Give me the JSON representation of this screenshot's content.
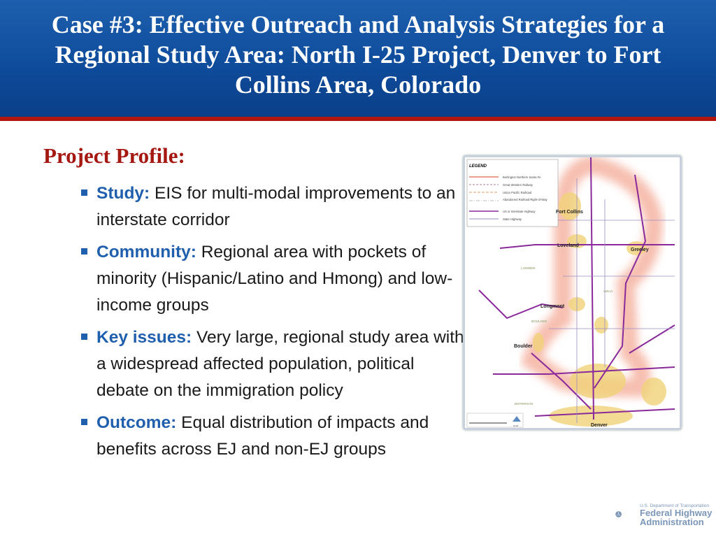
{
  "title": "Case #3: Effective Outreach and Analysis Strategies for a Regional Study Area: North I-25 Project, Denver to Fort Collins Area, Colorado",
  "heading": "Project Profile:",
  "bullets": [
    {
      "key": "Study:",
      "text": " EIS for multi-modal improvements to an interstate corridor"
    },
    {
      "key": "Community:",
      "text": " Regional area with pockets of minority (Hispanic/Latino and Hmong) and low-income groups"
    },
    {
      "key": "Key issues:",
      "text": " Very large, regional study area with a widespread affected population, political debate on the immigration policy"
    },
    {
      "key": "Outcome:",
      "text": " Equal distribution of impacts and benefits across EJ and non-EJ groups"
    }
  ],
  "map": {
    "legend_title": "LEGEND",
    "legend": [
      "Burlington Northern Santa Fe",
      "Great Western Railway",
      "Union Pacific Railroad",
      "Abandoned Railroad Right-of-Way",
      "US or Interstate Highway",
      "State Highway"
    ],
    "cities": [
      "Fort Collins",
      "Loveland",
      "Greeley",
      "Longmont",
      "Boulder",
      "Denver"
    ],
    "counties": [
      "LARIMER",
      "WELD",
      "BOULDER",
      "JEFFERSON"
    ],
    "north_label": "North"
  },
  "logo": {
    "line1": "U.S. Department of Transportation",
    "line2": "Federal Highway",
    "line3": "Administration"
  },
  "colors": {
    "header": "#0f4c9c",
    "accent_red": "#b3160f",
    "bullet_blue": "#1f5fae"
  }
}
